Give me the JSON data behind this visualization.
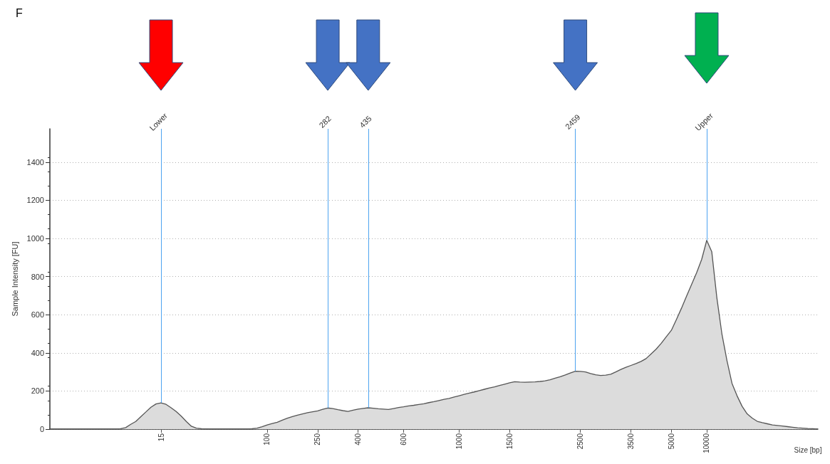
{
  "chart_data": {
    "type": "area",
    "categories": [
      null,
      null,
      null,
      null,
      null,
      null,
      null,
      null,
      null,
      null,
      null,
      null,
      null,
      null,
      null,
      null,
      null,
      null,
      null,
      null,
      null,
      null,
      "15",
      null,
      null,
      null,
      null,
      null,
      null,
      null,
      null,
      null,
      null,
      null,
      null,
      null,
      null,
      null,
      null,
      null,
      null,
      null,
      null,
      "100",
      null,
      null,
      null,
      null,
      null,
      null,
      null,
      null,
      null,
      "250",
      null,
      null,
      null,
      null,
      null,
      null,
      null,
      "400",
      null,
      null,
      null,
      null,
      null,
      null,
      null,
      null,
      "600",
      null,
      null,
      null,
      null,
      null,
      null,
      null,
      null,
      null,
      null,
      "1000",
      null,
      null,
      null,
      null,
      null,
      null,
      null,
      null,
      null,
      "1500",
      null,
      null,
      null,
      null,
      null,
      null,
      null,
      null,
      null,
      null,
      null,
      null,
      null,
      "2500",
      null,
      null,
      null,
      null,
      null,
      null,
      null,
      null,
      null,
      "3500",
      null,
      null,
      null,
      null,
      null,
      null,
      null,
      "5000",
      null,
      null,
      null,
      null,
      null,
      null,
      "10000",
      null,
      null,
      null,
      null,
      null,
      null,
      null,
      null,
      null,
      null,
      null,
      null,
      null,
      null,
      null,
      null,
      null,
      null,
      null,
      null,
      null,
      null
    ],
    "values": [
      0,
      0,
      0,
      0,
      0,
      0,
      0,
      0,
      0,
      0,
      0,
      0,
      0,
      0,
      2,
      8,
      25,
      40,
      65,
      90,
      115,
      132,
      138,
      130,
      112,
      92,
      68,
      40,
      15,
      5,
      2,
      1,
      0,
      0,
      0,
      0,
      0,
      0,
      0,
      0,
      2,
      5,
      13,
      22,
      29,
      36,
      47,
      57,
      66,
      73,
      80,
      86,
      91,
      96,
      104,
      111,
      108,
      102,
      97,
      93,
      99,
      105,
      109,
      112,
      110,
      107,
      105,
      103,
      108,
      113,
      117,
      122,
      125,
      129,
      133,
      139,
      144,
      150,
      156,
      161,
      168,
      175,
      182,
      189,
      195,
      202,
      209,
      216,
      222,
      229,
      236,
      243,
      249,
      247,
      246,
      247,
      248,
      250,
      253,
      259,
      267,
      275,
      284,
      294,
      304,
      303,
      300,
      292,
      285,
      281,
      283,
      288,
      300,
      313,
      324,
      334,
      344,
      355,
      370,
      395,
      420,
      450,
      485,
      518,
      575,
      634,
      697,
      759,
      820,
      890,
      990,
      930,
      690,
      500,
      360,
      240,
      175,
      120,
      80,
      58,
      41,
      34,
      28,
      22,
      19,
      16,
      13,
      10,
      7,
      5,
      3,
      2,
      0
    ],
    "color": "#dcdcdc",
    "xlabel": "Size [bp]",
    "ylabel": "Sample Intensity [FU]",
    "annotations": [
      "F",
      "Lower",
      "282",
      "435",
      "2459",
      {
        "text": "Upper",
        "x": "10000",
        "y": 990
      }
    ],
    "ylim": [
      0,
      1575
    ],
    "yticks": [
      0,
      200,
      400,
      600,
      800,
      1000,
      1200,
      1400
    ],
    "grid": "y"
  }
}
